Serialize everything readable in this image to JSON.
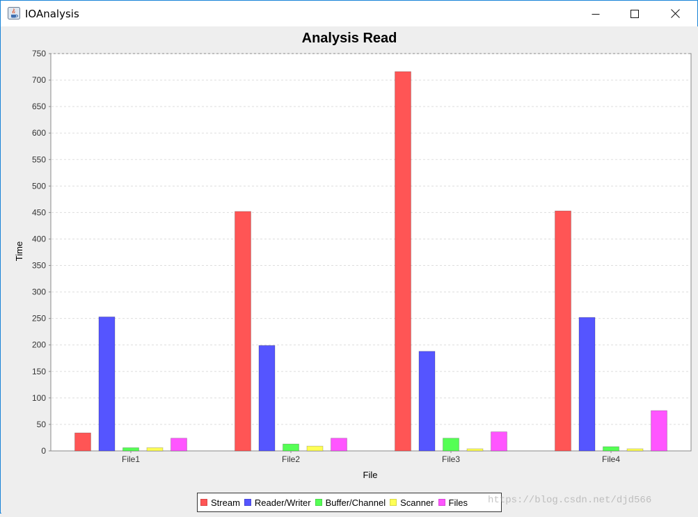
{
  "window": {
    "title": "IOAnalysis",
    "minimize_icon": "minimize-icon",
    "maximize_icon": "maximize-icon",
    "close_icon": "close-icon"
  },
  "chart_data": {
    "type": "bar",
    "title": "Analysis Read",
    "xlabel": "File",
    "ylabel": "Time",
    "ylim": [
      0,
      750
    ],
    "yticks": [
      0,
      50,
      100,
      150,
      200,
      250,
      300,
      350,
      400,
      450,
      500,
      550,
      600,
      650,
      700,
      750
    ],
    "categories": [
      "File1",
      "File2",
      "File3",
      "File4"
    ],
    "grid": true,
    "legend_position": "bottom",
    "series": [
      {
        "name": "Stream",
        "color": "#ff5555",
        "values": [
          34,
          452,
          716,
          453
        ]
      },
      {
        "name": "Reader/Writer",
        "color": "#5555ff",
        "values": [
          253,
          199,
          188,
          252
        ]
      },
      {
        "name": "Buffer/Channel",
        "color": "#55ff55",
        "values": [
          6,
          13,
          24,
          8
        ]
      },
      {
        "name": "Scanner",
        "color": "#ffff55",
        "values": [
          6,
          9,
          4,
          4
        ]
      },
      {
        "name": "Files",
        "color": "#ff55ff",
        "values": [
          24,
          24,
          36,
          76
        ]
      }
    ]
  },
  "watermark": "https://blog.csdn.net/djd566"
}
